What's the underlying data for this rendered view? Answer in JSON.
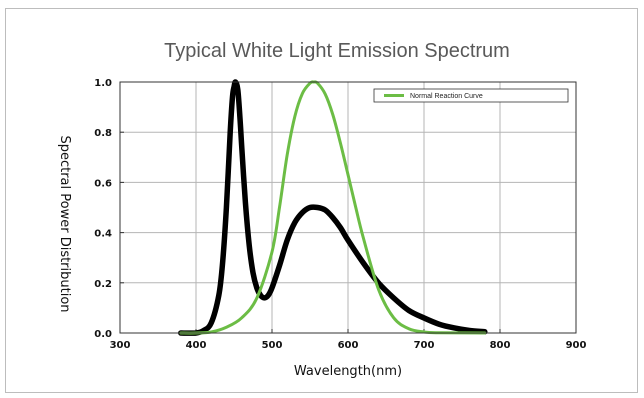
{
  "chart_data": {
    "type": "line",
    "title": "Typical White Light Emission Spectrum",
    "xlabel": "Wavelength(nm)",
    "ylabel": "Spectral Power Distribution",
    "xlim": [
      300,
      900
    ],
    "ylim": [
      0,
      1.0
    ],
    "xticks": [
      300,
      400,
      500,
      600,
      700,
      800,
      900
    ],
    "yticks": [
      0.0,
      0.2,
      0.4,
      0.6,
      0.8,
      1.0
    ],
    "ytick_labels": [
      "0.0",
      "0.2",
      "0.4",
      "0.6",
      "0.8",
      "1.0"
    ],
    "grid": true,
    "legend_position": "top-right",
    "series": [
      {
        "color": "#000000",
        "x": [
          380,
          400,
          410,
          420,
          430,
          435,
          440,
          445,
          448,
          450,
          452,
          455,
          458,
          460,
          465,
          470,
          475,
          480,
          485,
          490,
          495,
          500,
          510,
          520,
          530,
          540,
          550,
          560,
          570,
          580,
          590,
          600,
          620,
          640,
          660,
          680,
          700,
          720,
          740,
          760,
          780
        ],
        "y": [
          0.0,
          0.0,
          0.01,
          0.04,
          0.15,
          0.28,
          0.5,
          0.8,
          0.94,
          0.98,
          1.0,
          0.97,
          0.85,
          0.75,
          0.52,
          0.35,
          0.24,
          0.18,
          0.15,
          0.14,
          0.15,
          0.18,
          0.27,
          0.37,
          0.44,
          0.48,
          0.5,
          0.5,
          0.49,
          0.46,
          0.42,
          0.37,
          0.28,
          0.2,
          0.14,
          0.09,
          0.06,
          0.035,
          0.02,
          0.01,
          0.005
        ]
      },
      {
        "name": "Normal Reaction Curve",
        "color": "#6cbd45",
        "x": [
          380,
          400,
          420,
          440,
          460,
          480,
          500,
          510,
          520,
          530,
          540,
          550,
          555,
          560,
          570,
          580,
          590,
          600,
          610,
          620,
          640,
          660,
          680,
          700,
          720,
          780
        ],
        "y": [
          0.0,
          0.0,
          0.004,
          0.023,
          0.06,
          0.139,
          0.323,
          0.503,
          0.71,
          0.862,
          0.954,
          0.995,
          1.0,
          0.995,
          0.952,
          0.87,
          0.757,
          0.631,
          0.503,
          0.381,
          0.175,
          0.061,
          0.017,
          0.004,
          0.001,
          0.0
        ]
      }
    ]
  }
}
